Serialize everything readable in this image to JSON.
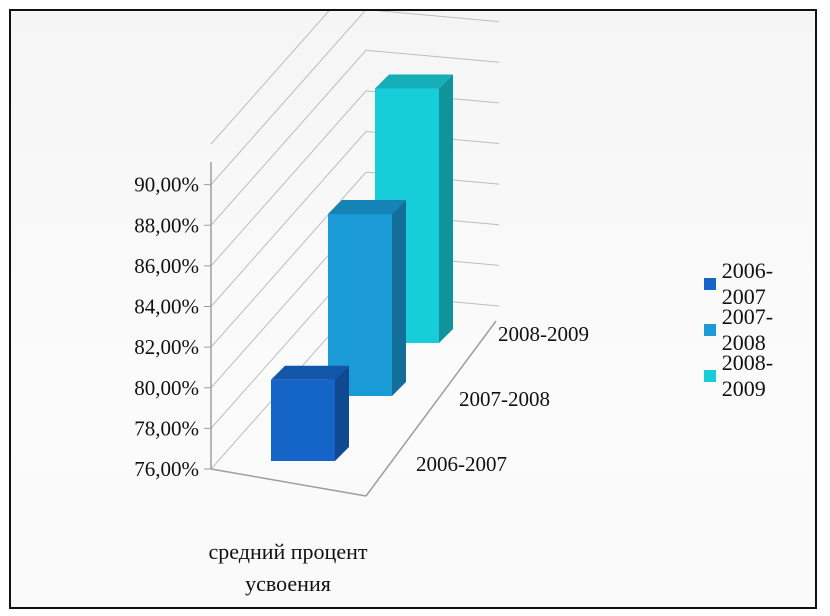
{
  "chart_data": {
    "type": "bar",
    "categories": [
      "средний процент усвоения"
    ],
    "series": [
      {
        "name": "2006-2007",
        "values": [
          80.6
        ],
        "color": "#1565c8"
      },
      {
        "name": "2007-2008",
        "values": [
          86.3
        ],
        "color": "#1a9ad6"
      },
      {
        "name": "2008-2009",
        "values": [
          90.4
        ],
        "color": "#16cdd8"
      }
    ],
    "y_ticks": [
      "76,00%",
      "78,00%",
      "80,00%",
      "82,00%",
      "84,00%",
      "86,00%",
      "88,00%",
      "90,00%"
    ],
    "depth_labels": [
      "2006-2007",
      "2007-2008",
      "2008-2009"
    ],
    "category_label_lines": [
      "средний процент",
      "усвоения"
    ],
    "ylim": [
      76,
      92
    ],
    "grid": true,
    "legend": "right",
    "projection": "3d"
  }
}
